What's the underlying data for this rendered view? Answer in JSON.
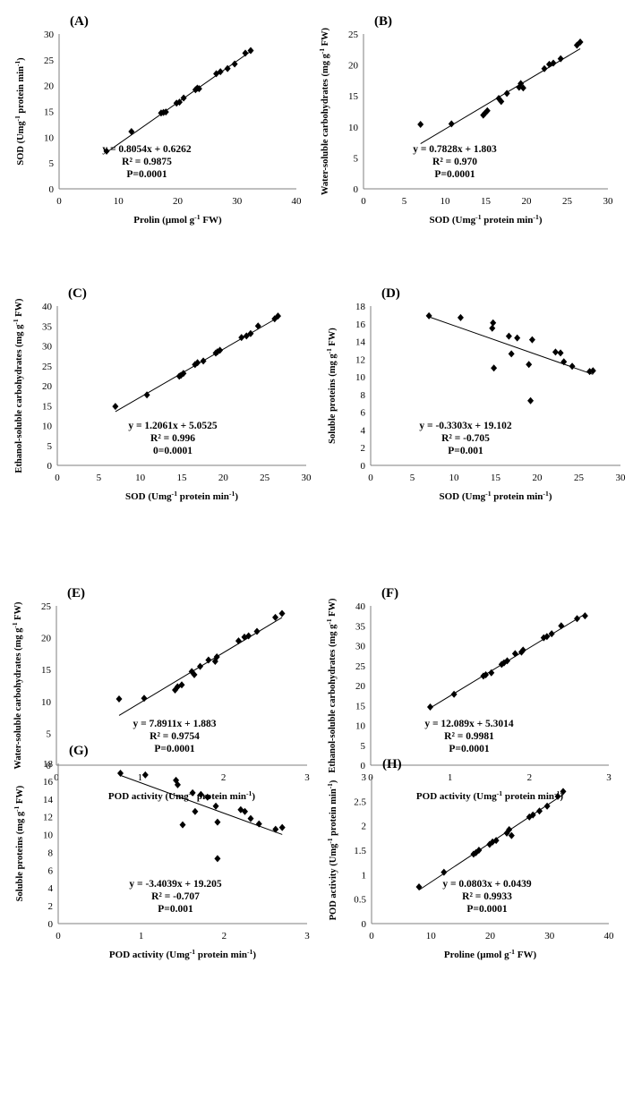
{
  "chart_data": [
    {
      "panel": "(A)",
      "type": "scatter",
      "xlabel": "Prolin (µmol g⁻¹ FW)",
      "ylabel": "SOD (Umg⁻¹ protein min⁻¹)",
      "xlim": [
        0,
        40
      ],
      "ylim": [
        0,
        30
      ],
      "xticks": [
        "0",
        "10",
        "20",
        "30",
        "40"
      ],
      "yticks": [
        "0",
        "5",
        "10",
        "15",
        "20",
        "25",
        "30"
      ],
      "annotations": [
        "y = 0.8054x + 0.6262",
        "R² = 0.9875",
        "P=0.0001"
      ],
      "trendline": {
        "slope": 0.8054,
        "intercept": 0.6262
      },
      "x": [
        8.0,
        12.2,
        17.2,
        17.6,
        18.0,
        19.8,
        20.3,
        21.0,
        23.0,
        23.3,
        23.6,
        26.5,
        27.2,
        28.4,
        29.6,
        31.4,
        32.3
      ],
      "y": [
        7.3,
        11.1,
        14.7,
        14.8,
        14.9,
        16.6,
        16.8,
        17.6,
        19.2,
        19.5,
        19.4,
        22.3,
        22.7,
        23.3,
        24.2,
        26.3,
        26.8
      ]
    },
    {
      "panel": "(B)",
      "type": "scatter",
      "xlabel": "SOD (Umg⁻¹ protein min⁻¹)",
      "ylabel": "Water-soluble carbohydrates (mg g⁻¹ FW)",
      "xlim": [
        0,
        30
      ],
      "ylim": [
        0,
        25
      ],
      "xticks": [
        "0",
        "5",
        "10",
        "15",
        "20",
        "25",
        "30"
      ],
      "yticks": [
        "0",
        "5",
        "10",
        "15",
        "20",
        "25"
      ],
      "annotations": [
        "y = 0.7828x + 1.803",
        "R² = 0.970",
        "P=0.0001"
      ],
      "trendline": {
        "slope": 0.7828,
        "intercept": 1.803
      },
      "x": [
        7.0,
        10.8,
        14.7,
        14.9,
        15.2,
        16.6,
        16.9,
        17.6,
        19.1,
        19.3,
        19.6,
        22.2,
        22.8,
        23.3,
        24.2,
        26.2,
        26.6
      ],
      "y": [
        10.4,
        10.5,
        11.9,
        12.2,
        12.6,
        14.6,
        14.1,
        15.4,
        16.4,
        17.0,
        16.3,
        19.4,
        20.1,
        20.3,
        21.0,
        23.2,
        23.7
      ]
    },
    {
      "panel": "(C)",
      "type": "scatter",
      "xlabel": "SOD (Umg⁻¹ protein min⁻¹)",
      "ylabel": "Ethanol-soluble carbohydrates (mg g⁻¹ FW)",
      "xlim": [
        0,
        30
      ],
      "ylim": [
        0,
        40
      ],
      "xticks": [
        "0",
        "5",
        "10",
        "15",
        "20",
        "25",
        "30"
      ],
      "yticks": [
        "0",
        "5",
        "10",
        "15",
        "20",
        "25",
        "30",
        "35",
        "40"
      ],
      "annotations": [
        "y = 1.2061x + 5.0525",
        "R² = 0.996",
        "0=0.0001"
      ],
      "trendline": {
        "slope": 1.2061,
        "intercept": 5.0525
      },
      "x": [
        7.0,
        10.8,
        14.7,
        14.9,
        15.2,
        16.6,
        16.9,
        17.6,
        19.1,
        19.3,
        19.6,
        22.2,
        22.8,
        23.3,
        24.2,
        26.2,
        26.6
      ],
      "y": [
        14.8,
        17.7,
        22.4,
        22.6,
        23.1,
        25.3,
        25.8,
        26.2,
        28.2,
        28.5,
        28.9,
        32.1,
        32.5,
        33.1,
        35.0,
        36.8,
        37.5
      ]
    },
    {
      "panel": "(D)",
      "type": "scatter",
      "xlabel": "SOD (Umg⁻¹ protein min⁻¹)",
      "ylabel": "Soluble proteins (mg g⁻¹ FW)",
      "xlim": [
        0,
        30
      ],
      "ylim": [
        0,
        18
      ],
      "xticks": [
        "0",
        "5",
        "10",
        "15",
        "20",
        "25",
        "30"
      ],
      "yticks": [
        "0",
        "2",
        "4",
        "6",
        "8",
        "10",
        "12",
        "14",
        "16",
        "18"
      ],
      "annotations": [
        "y = -0.3303x + 19.102",
        "R² = -0.705",
        "P=0.001"
      ],
      "trendline": {
        "slope": -0.3303,
        "intercept": 19.102
      },
      "x": [
        7.0,
        10.8,
        14.6,
        14.7,
        14.8,
        16.6,
        16.9,
        17.6,
        19.0,
        19.2,
        19.4,
        22.2,
        22.8,
        23.2,
        24.2,
        26.3,
        26.7
      ],
      "y": [
        16.9,
        16.7,
        15.5,
        16.1,
        11.0,
        14.6,
        12.6,
        14.4,
        11.4,
        7.3,
        14.2,
        12.8,
        12.7,
        11.7,
        11.2,
        10.6,
        10.7
      ]
    },
    {
      "panel": "(E)",
      "type": "scatter",
      "xlabel": "POD activity (Umg⁻¹ protein min⁻¹)",
      "ylabel": "Water-soluble carbohydrates (mg g⁻¹ FW)",
      "xlim": [
        0,
        3
      ],
      "ylim": [
        0,
        25
      ],
      "xticks": [
        "0",
        "1",
        "2",
        "3"
      ],
      "yticks": [
        "0",
        "5",
        "10",
        "15",
        "20",
        "25"
      ],
      "annotations": [
        "y = 7.8911x + 1.883",
        "R² = 0.9754",
        "P=0.0001"
      ],
      "trendline": {
        "slope": 7.8911,
        "intercept": 1.883
      },
      "x": [
        0.75,
        1.05,
        1.42,
        1.45,
        1.5,
        1.62,
        1.65,
        1.72,
        1.82,
        1.9,
        1.92,
        2.18,
        2.25,
        2.3,
        2.4,
        2.62,
        2.7
      ],
      "y": [
        10.4,
        10.5,
        11.8,
        12.3,
        12.6,
        14.7,
        14.2,
        15.5,
        16.5,
        16.3,
        17.0,
        19.5,
        20.1,
        20.3,
        21.0,
        23.2,
        23.8
      ]
    },
    {
      "panel": "(F)",
      "type": "scatter",
      "xlabel": "POD activity (Umg⁻¹ protein min⁻¹)",
      "ylabel": "Ethanol-soluble carbohydrates (mg g⁻¹ FW)",
      "xlim": [
        0,
        3
      ],
      "ylim": [
        0,
        40
      ],
      "xticks": [
        "0",
        "1",
        "2",
        "3"
      ],
      "yticks": [
        "0",
        "5",
        "10",
        "15",
        "20",
        "25",
        "30",
        "35",
        "40"
      ],
      "annotations": [
        "y = 12.089x + 5.3014",
        "R² = 0.9981",
        "P=0.0001"
      ],
      "trendline": {
        "slope": 12.089,
        "intercept": 5.3014
      },
      "x": [
        0.75,
        1.05,
        1.42,
        1.45,
        1.52,
        1.65,
        1.68,
        1.72,
        1.82,
        1.9,
        1.92,
        2.18,
        2.22,
        2.28,
        2.4,
        2.6,
        2.7
      ],
      "y": [
        14.6,
        17.8,
        22.4,
        22.7,
        23.2,
        25.3,
        25.7,
        26.2,
        28.0,
        28.4,
        28.9,
        32.0,
        32.3,
        33.0,
        35.0,
        36.8,
        37.5
      ]
    },
    {
      "panel": "(G)",
      "type": "scatter",
      "xlabel": "POD activity (Umg⁻¹ protein min⁻¹)",
      "ylabel": "Soluble proteins (mg g⁻¹ FW)",
      "xlim": [
        0,
        3
      ],
      "ylim": [
        0,
        18
      ],
      "xticks": [
        "0",
        "1",
        "2",
        "3"
      ],
      "yticks": [
        "0",
        "2",
        "4",
        "6",
        "8",
        "10",
        "12",
        "14",
        "16",
        "18"
      ],
      "annotations": [
        "y = -3.4039x + 19.205",
        "R² = -0.707",
        "P=0.001"
      ],
      "trendline": {
        "slope": -3.4039,
        "intercept": 19.205
      },
      "x": [
        0.75,
        1.05,
        1.42,
        1.44,
        1.5,
        1.62,
        1.65,
        1.72,
        1.8,
        1.9,
        1.92,
        1.92,
        2.2,
        2.25,
        2.32,
        2.42,
        2.62,
        2.7
      ],
      "y": [
        16.9,
        16.7,
        16.1,
        15.6,
        11.1,
        14.7,
        12.6,
        14.5,
        14.2,
        13.2,
        11.4,
        7.3,
        12.8,
        12.6,
        11.8,
        11.2,
        10.6,
        10.8
      ]
    },
    {
      "panel": "(H)",
      "type": "scatter",
      "xlabel": "Proline (µmol g⁻¹ FW)",
      "ylabel": "POD activity (Umg⁻¹ protein min⁻¹)",
      "xlim": [
        0,
        40
      ],
      "ylim": [
        0,
        3
      ],
      "xticks": [
        "0",
        "10",
        "20",
        "30",
        "40"
      ],
      "yticks": [
        "0",
        "0.5",
        "1",
        "1.5",
        "2",
        "2.5",
        "3"
      ],
      "annotations": [
        "y = 0.0803x + 0.0439",
        "R² = 0.9933",
        "P=0.0001"
      ],
      "trendline": {
        "slope": 0.0803,
        "intercept": 0.0439
      },
      "x": [
        8.0,
        12.2,
        17.2,
        17.6,
        18.1,
        19.9,
        20.4,
        21.0,
        22.8,
        23.2,
        23.6,
        26.6,
        27.2,
        28.3,
        29.6,
        31.4,
        32.3
      ],
      "y": [
        0.75,
        1.05,
        1.42,
        1.45,
        1.5,
        1.62,
        1.67,
        1.7,
        1.85,
        1.92,
        1.8,
        2.18,
        2.22,
        2.3,
        2.4,
        2.6,
        2.7
      ]
    }
  ]
}
